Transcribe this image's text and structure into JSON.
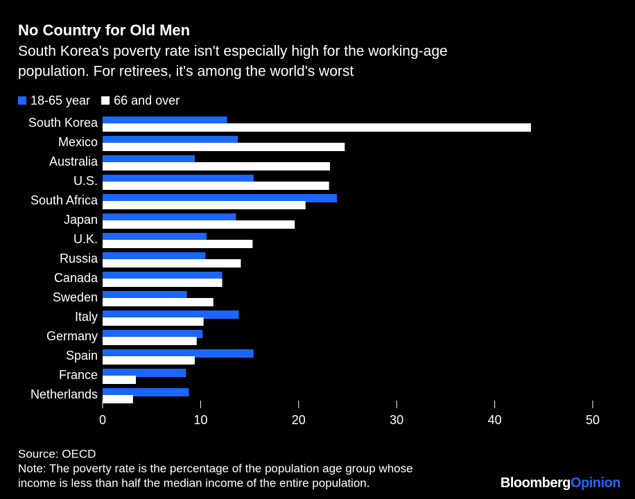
{
  "chart_data": {
    "type": "hbar",
    "title": "No Country for Old Men",
    "subtitle": [
      "South Korea's poverty rate isn't especially high for the working-age",
      "population. For retirees, it's among the world's worst"
    ],
    "categories": [
      "South Korea",
      "Mexico",
      "Australia",
      "U.S.",
      "South Africa",
      "Japan",
      "U.K.",
      "Russia",
      "Canada",
      "Sweden",
      "Italy",
      "Germany",
      "Spain",
      "France",
      "Netherlands"
    ],
    "series": [
      {
        "name": "18-65 year",
        "color": "#1a66ff",
        "values": [
          12.7,
          13.8,
          9.4,
          15.4,
          23.9,
          13.6,
          10.6,
          10.5,
          12.2,
          8.6,
          13.9,
          10.2,
          15.4,
          8.5,
          8.8
        ]
      },
      {
        "name": "66 and over",
        "color": "#ffffff",
        "values": [
          43.7,
          24.7,
          23.2,
          23.1,
          20.7,
          19.6,
          15.3,
          14.1,
          12.2,
          11.3,
          10.3,
          9.6,
          9.4,
          3.4,
          3.1
        ]
      }
    ],
    "xlim": [
      0,
      50
    ],
    "xticks": [
      0,
      10,
      20,
      30,
      40,
      50
    ],
    "source": "Source: OECD",
    "note": [
      "Note: The poverty rate is the percentage of the population age group whose",
      "income is less than half the median income of the entire population."
    ],
    "brand": [
      "Bloomberg",
      "Opinion"
    ]
  }
}
